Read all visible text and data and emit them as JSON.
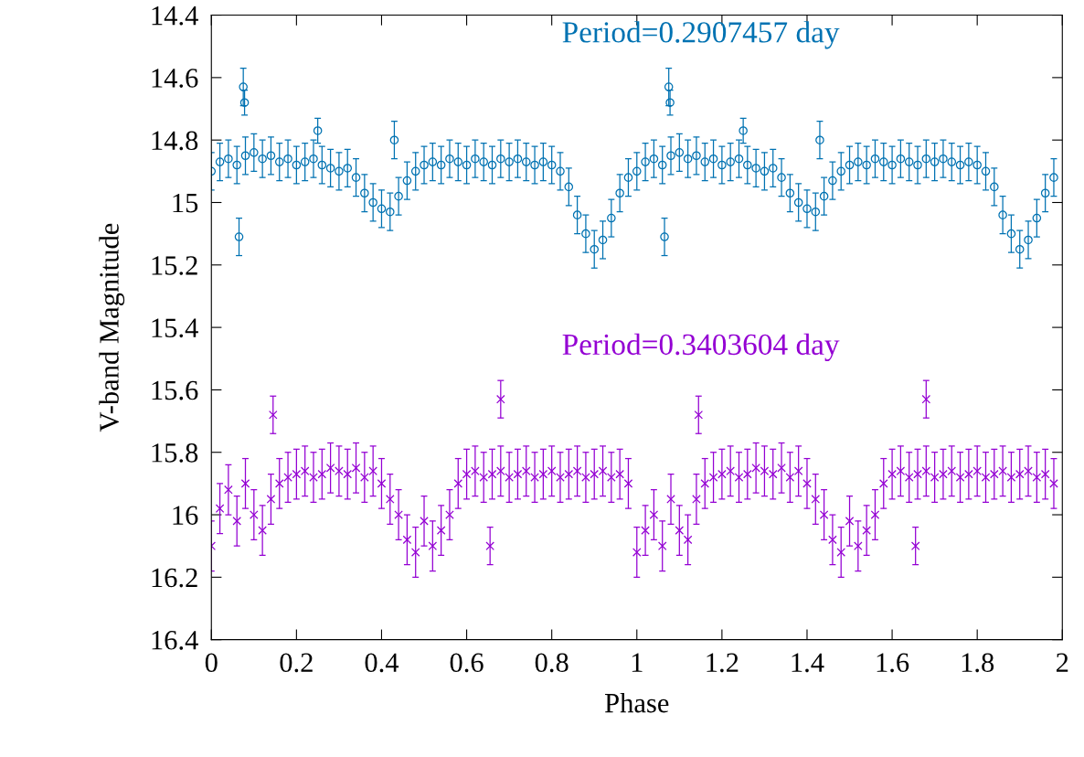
{
  "chart_data": {
    "type": "scatter",
    "xlabel": "Phase",
    "ylabel": "V-band Magnitude",
    "xlim": [
      0,
      2
    ],
    "xticks": [
      0,
      0.2,
      0.4,
      0.6,
      0.8,
      1,
      1.2,
      1.4,
      1.6,
      1.8,
      2
    ],
    "ylim": [
      16.4,
      14.4
    ],
    "yticks": [
      14.4,
      14.6,
      14.8,
      15,
      15.2,
      15.4,
      15.6,
      15.8,
      16,
      16.2,
      16.4
    ],
    "grid": false,
    "legend": false,
    "series": [
      {
        "name": "Period=0.2907457 day",
        "color": "#0072b2",
        "marker": "circle",
        "x": [
          0,
          0.02,
          0.04,
          0.06,
          0.08,
          0.1,
          0.12,
          0.14,
          0.16,
          0.18,
          0.2,
          0.22,
          0.24,
          0.26,
          0.28,
          0.3,
          0.32,
          0.34,
          0.36,
          0.38,
          0.4,
          0.42,
          0.44,
          0.46,
          0.48,
          0.5,
          0.52,
          0.54,
          0.56,
          0.58,
          0.6,
          0.62,
          0.64,
          0.66,
          0.68,
          0.7,
          0.72,
          0.74,
          0.76,
          0.78,
          0.8,
          0.82,
          0.84,
          0.86,
          0.88,
          0.9,
          0.92,
          0.94,
          0.96,
          0.98,
          0.075,
          0.078,
          0.065,
          0.43,
          0.25,
          1,
          1.02,
          1.04,
          1.06,
          1.08,
          1.1,
          1.12,
          1.14,
          1.16,
          1.18,
          1.2,
          1.22,
          1.24,
          1.26,
          1.28,
          1.3,
          1.32,
          1.34,
          1.36,
          1.38,
          1.4,
          1.42,
          1.44,
          1.46,
          1.48,
          1.5,
          1.52,
          1.54,
          1.56,
          1.58,
          1.6,
          1.62,
          1.64,
          1.66,
          1.68,
          1.7,
          1.72,
          1.74,
          1.76,
          1.78,
          1.8,
          1.82,
          1.84,
          1.86,
          1.88,
          1.9,
          1.92,
          1.94,
          1.96,
          1.98,
          1.075,
          1.078,
          1.065,
          1.43,
          1.25
        ],
        "values": [
          14.9,
          14.87,
          14.86,
          14.88,
          14.85,
          14.84,
          14.86,
          14.85,
          14.87,
          14.86,
          14.88,
          14.87,
          14.86,
          14.88,
          14.89,
          14.9,
          14.89,
          14.92,
          14.97,
          15.0,
          15.02,
          15.03,
          14.98,
          14.93,
          14.9,
          14.88,
          14.87,
          14.88,
          14.86,
          14.87,
          14.88,
          14.86,
          14.87,
          14.88,
          14.86,
          14.87,
          14.86,
          14.87,
          14.88,
          14.87,
          14.88,
          14.9,
          14.95,
          15.04,
          15.1,
          15.15,
          15.12,
          15.05,
          14.97,
          14.92,
          14.63,
          14.68,
          15.11,
          14.8,
          14.77,
          14.9,
          14.87,
          14.86,
          14.88,
          14.85,
          14.84,
          14.86,
          14.85,
          14.87,
          14.86,
          14.88,
          14.87,
          14.86,
          14.88,
          14.89,
          14.9,
          14.89,
          14.92,
          14.97,
          15.0,
          15.02,
          15.03,
          14.98,
          14.93,
          14.9,
          14.88,
          14.87,
          14.88,
          14.86,
          14.87,
          14.88,
          14.86,
          14.87,
          14.88,
          14.86,
          14.87,
          14.86,
          14.87,
          14.88,
          14.87,
          14.88,
          14.9,
          14.95,
          15.04,
          15.1,
          15.15,
          15.12,
          15.05,
          14.97,
          14.92,
          14.63,
          14.68,
          15.11,
          14.8,
          14.77
        ],
        "errors": [
          0.06,
          0.06,
          0.06,
          0.06,
          0.06,
          0.06,
          0.06,
          0.06,
          0.06,
          0.06,
          0.06,
          0.06,
          0.06,
          0.06,
          0.06,
          0.06,
          0.06,
          0.06,
          0.06,
          0.06,
          0.06,
          0.06,
          0.06,
          0.06,
          0.06,
          0.06,
          0.06,
          0.06,
          0.06,
          0.06,
          0.06,
          0.06,
          0.06,
          0.06,
          0.06,
          0.06,
          0.06,
          0.06,
          0.06,
          0.06,
          0.06,
          0.06,
          0.06,
          0.06,
          0.06,
          0.06,
          0.06,
          0.06,
          0.06,
          0.06,
          0.06,
          0.04,
          0.06,
          0.06,
          0.04,
          0.06,
          0.06,
          0.06,
          0.06,
          0.06,
          0.06,
          0.06,
          0.06,
          0.06,
          0.06,
          0.06,
          0.06,
          0.06,
          0.06,
          0.06,
          0.06,
          0.06,
          0.06,
          0.06,
          0.06,
          0.06,
          0.06,
          0.06,
          0.06,
          0.06,
          0.06,
          0.06,
          0.06,
          0.06,
          0.06,
          0.06,
          0.06,
          0.06,
          0.06,
          0.06,
          0.06,
          0.06,
          0.06,
          0.06,
          0.06,
          0.06,
          0.06,
          0.06,
          0.06,
          0.06,
          0.06,
          0.06,
          0.06,
          0.06,
          0.06,
          0.06,
          0.04,
          0.06,
          0.06,
          0.04
        ]
      },
      {
        "name": "Period=0.3403604 day",
        "color": "#9400d3",
        "marker": "cross",
        "x": [
          0,
          0.02,
          0.04,
          0.06,
          0.08,
          0.1,
          0.12,
          0.14,
          0.16,
          0.18,
          0.2,
          0.22,
          0.24,
          0.26,
          0.28,
          0.3,
          0.32,
          0.34,
          0.36,
          0.38,
          0.4,
          0.42,
          0.44,
          0.46,
          0.48,
          0.5,
          0.52,
          0.54,
          0.56,
          0.58,
          0.6,
          0.62,
          0.64,
          0.66,
          0.68,
          0.7,
          0.72,
          0.74,
          0.76,
          0.78,
          0.8,
          0.82,
          0.84,
          0.86,
          0.88,
          0.9,
          0.92,
          0.94,
          0.96,
          0.98,
          0.145,
          0.68,
          0.655,
          1,
          1.02,
          1.04,
          1.06,
          1.08,
          1.1,
          1.12,
          1.14,
          1.16,
          1.18,
          1.2,
          1.22,
          1.24,
          1.26,
          1.28,
          1.3,
          1.32,
          1.34,
          1.36,
          1.38,
          1.4,
          1.42,
          1.44,
          1.46,
          1.48,
          1.5,
          1.52,
          1.54,
          1.56,
          1.58,
          1.6,
          1.62,
          1.64,
          1.66,
          1.68,
          1.7,
          1.72,
          1.74,
          1.76,
          1.78,
          1.8,
          1.82,
          1.84,
          1.86,
          1.88,
          1.9,
          1.92,
          1.94,
          1.96,
          1.98,
          1.145,
          1.68,
          1.655
        ],
        "values": [
          16.1,
          15.98,
          15.92,
          16.02,
          15.9,
          16.0,
          16.05,
          15.95,
          15.9,
          15.88,
          15.87,
          15.86,
          15.88,
          15.87,
          15.85,
          15.86,
          15.87,
          15.85,
          15.88,
          15.86,
          15.9,
          15.95,
          16.0,
          16.08,
          16.12,
          16.02,
          16.1,
          16.05,
          16.0,
          15.9,
          15.87,
          15.86,
          15.88,
          15.87,
          15.86,
          15.88,
          15.87,
          15.86,
          15.88,
          15.87,
          15.86,
          15.88,
          15.87,
          15.86,
          15.88,
          15.87,
          15.86,
          15.88,
          15.87,
          15.9,
          15.68,
          15.63,
          16.1,
          16.12,
          16.05,
          16.0,
          16.1,
          15.95,
          16.05,
          16.08,
          15.95,
          15.9,
          15.88,
          15.87,
          15.86,
          15.88,
          15.87,
          15.85,
          15.86,
          15.87,
          15.85,
          15.88,
          15.86,
          15.9,
          15.95,
          16.0,
          16.08,
          16.12,
          16.02,
          16.1,
          16.05,
          16.0,
          15.9,
          15.87,
          15.86,
          15.88,
          15.87,
          15.86,
          15.88,
          15.87,
          15.86,
          15.88,
          15.87,
          15.86,
          15.88,
          15.87,
          15.86,
          15.88,
          15.87,
          15.86,
          15.88,
          15.87,
          15.9,
          15.68,
          15.63,
          16.1
        ],
        "errors": [
          0.08,
          0.08,
          0.08,
          0.08,
          0.08,
          0.08,
          0.08,
          0.08,
          0.08,
          0.08,
          0.08,
          0.08,
          0.08,
          0.08,
          0.08,
          0.08,
          0.08,
          0.08,
          0.08,
          0.08,
          0.08,
          0.08,
          0.08,
          0.08,
          0.08,
          0.08,
          0.08,
          0.08,
          0.08,
          0.08,
          0.08,
          0.08,
          0.08,
          0.08,
          0.08,
          0.08,
          0.08,
          0.08,
          0.08,
          0.08,
          0.08,
          0.08,
          0.08,
          0.08,
          0.08,
          0.08,
          0.08,
          0.08,
          0.08,
          0.08,
          0.06,
          0.06,
          0.06,
          0.08,
          0.08,
          0.08,
          0.08,
          0.08,
          0.08,
          0.08,
          0.08,
          0.08,
          0.08,
          0.08,
          0.08,
          0.08,
          0.08,
          0.08,
          0.08,
          0.08,
          0.08,
          0.08,
          0.08,
          0.08,
          0.08,
          0.08,
          0.08,
          0.08,
          0.08,
          0.08,
          0.08,
          0.08,
          0.08,
          0.08,
          0.08,
          0.08,
          0.08,
          0.08,
          0.08,
          0.08,
          0.08,
          0.08,
          0.08,
          0.08,
          0.08,
          0.08,
          0.08,
          0.08,
          0.08,
          0.08,
          0.08,
          0.08,
          0.08,
          0.06,
          0.06,
          0.06
        ]
      }
    ]
  }
}
